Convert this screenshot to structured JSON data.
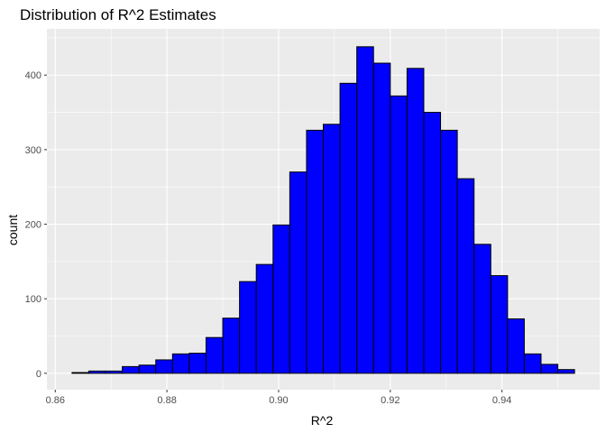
{
  "chart_data": {
    "type": "bar",
    "title": "Distribution of R^2 Estimates",
    "xlabel": "R^2",
    "ylabel": "count",
    "xlim": [
      0.8585,
      0.9575
    ],
    "ylim": [
      -22,
      462
    ],
    "x_ticks": [
      0.86,
      0.88,
      0.9,
      0.92,
      0.94
    ],
    "x_tick_labels": [
      "0.86",
      "0.88",
      "0.90",
      "0.92",
      "0.94"
    ],
    "y_ticks": [
      0,
      100,
      200,
      300,
      400
    ],
    "y_tick_labels": [
      "0",
      "100",
      "200",
      "300",
      "400"
    ],
    "bins": [
      {
        "x0": 0.863,
        "x1": 0.866,
        "count": 1
      },
      {
        "x0": 0.866,
        "x1": 0.869,
        "count": 3
      },
      {
        "x0": 0.869,
        "x1": 0.872,
        "count": 3
      },
      {
        "x0": 0.872,
        "x1": 0.875,
        "count": 9
      },
      {
        "x0": 0.875,
        "x1": 0.878,
        "count": 11
      },
      {
        "x0": 0.878,
        "x1": 0.881,
        "count": 18
      },
      {
        "x0": 0.881,
        "x1": 0.884,
        "count": 26
      },
      {
        "x0": 0.884,
        "x1": 0.887,
        "count": 27
      },
      {
        "x0": 0.887,
        "x1": 0.89,
        "count": 48
      },
      {
        "x0": 0.89,
        "x1": 0.893,
        "count": 74
      },
      {
        "x0": 0.893,
        "x1": 0.896,
        "count": 123
      },
      {
        "x0": 0.896,
        "x1": 0.899,
        "count": 146
      },
      {
        "x0": 0.899,
        "x1": 0.902,
        "count": 199
      },
      {
        "x0": 0.902,
        "x1": 0.905,
        "count": 270
      },
      {
        "x0": 0.905,
        "x1": 0.908,
        "count": 326
      },
      {
        "x0": 0.908,
        "x1": 0.911,
        "count": 334
      },
      {
        "x0": 0.911,
        "x1": 0.914,
        "count": 389
      },
      {
        "x0": 0.914,
        "x1": 0.917,
        "count": 438
      },
      {
        "x0": 0.917,
        "x1": 0.92,
        "count": 416
      },
      {
        "x0": 0.92,
        "x1": 0.923,
        "count": 372
      },
      {
        "x0": 0.923,
        "x1": 0.926,
        "count": 409
      },
      {
        "x0": 0.926,
        "x1": 0.929,
        "count": 350
      },
      {
        "x0": 0.929,
        "x1": 0.932,
        "count": 326
      },
      {
        "x0": 0.932,
        "x1": 0.935,
        "count": 261
      },
      {
        "x0": 0.935,
        "x1": 0.938,
        "count": 173
      },
      {
        "x0": 0.938,
        "x1": 0.941,
        "count": 131
      },
      {
        "x0": 0.941,
        "x1": 0.944,
        "count": 73
      },
      {
        "x0": 0.944,
        "x1": 0.947,
        "count": 26
      },
      {
        "x0": 0.947,
        "x1": 0.95,
        "count": 12
      },
      {
        "x0": 0.95,
        "x1": 0.953,
        "count": 5
      }
    ],
    "grid": true,
    "colors": {
      "bar_fill": "#0000ff",
      "bar_outline": "#000000",
      "panel": "#ebebeb",
      "grid": "#ffffff"
    }
  }
}
